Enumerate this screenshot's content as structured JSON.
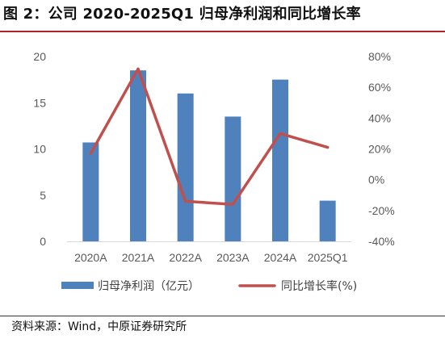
{
  "title": "图 2：公司 2020-2025Q1 归母净利润和同比增长率",
  "source": "资料来源：Wind，中原证券研究所",
  "colors": {
    "bar": "#4f81bd",
    "line": "#c0504d",
    "title_rule": "#b22222"
  },
  "chart_data": {
    "type": "bar+line",
    "categories": [
      "2020A",
      "2021A",
      "2022A",
      "2023A",
      "2024A",
      "2025Q1"
    ],
    "series": [
      {
        "name": "归母净利润（亿元）",
        "type": "bar",
        "axis": "left",
        "values": [
          10.7,
          18.5,
          16.0,
          13.5,
          17.5,
          4.4
        ]
      },
      {
        "name": "同比增长率(%)",
        "type": "line",
        "axis": "right",
        "values": [
          17,
          72,
          -14,
          -16,
          30,
          21
        ]
      }
    ],
    "y_left": {
      "ylim": [
        0,
        20
      ],
      "ticks": [
        "0",
        "5",
        "10",
        "15",
        "20"
      ]
    },
    "y_right": {
      "ylim": [
        -40,
        80
      ],
      "ticks": [
        "-40%",
        "-20%",
        "0%",
        "20%",
        "40%",
        "60%",
        "80%"
      ]
    },
    "grid": false,
    "legend": "bottom"
  }
}
